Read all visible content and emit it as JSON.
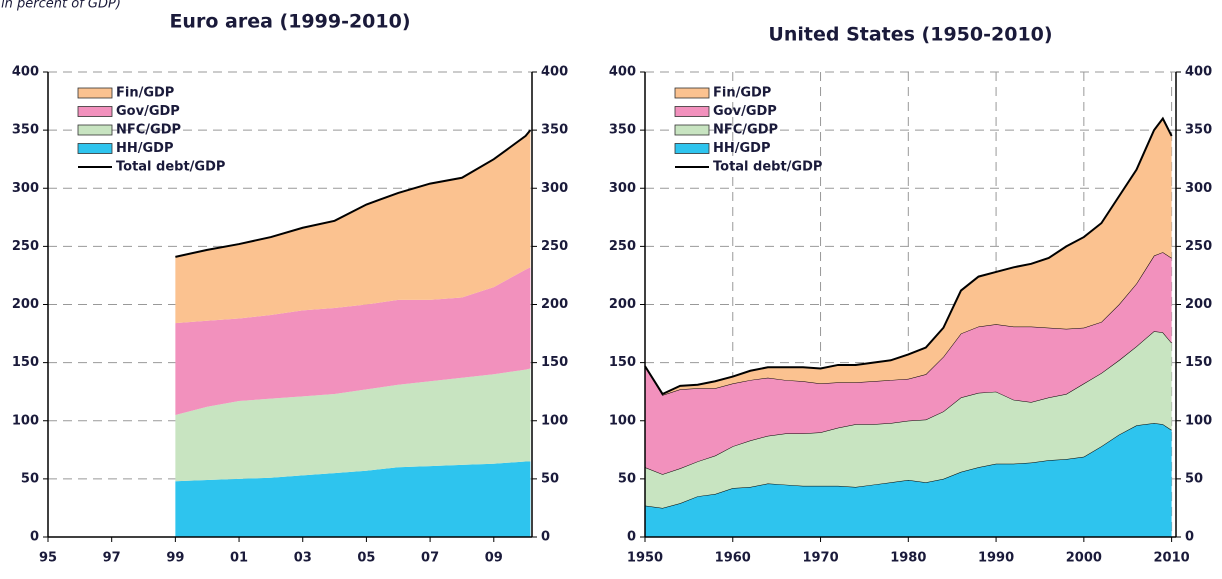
{
  "header": {
    "subtitle": "(in percent of GDP)"
  },
  "chart_data": [
    {
      "type": "stacked_area",
      "title": "Euro area (1999-2010)",
      "x": [
        1999,
        2000,
        2001,
        2002,
        2003,
        2004,
        2005,
        2006,
        2007,
        2008,
        2009,
        2010,
        2010.15
      ],
      "series": [
        {
          "name": "Fin/GDP",
          "color": "#fbc290",
          "kind": "area",
          "values": [
            57,
            61,
            64,
            67,
            71,
            75,
            86,
            92,
            100,
            103,
            110,
            115,
            118
          ]
        },
        {
          "name": "Gov/GDP",
          "color": "#f291bd",
          "kind": "area",
          "values": [
            79,
            74,
            71,
            72,
            74,
            74,
            73,
            73,
            70,
            69,
            75,
            86,
            87
          ]
        },
        {
          "name": "NFC/GDP",
          "color": "#c8e4c1",
          "kind": "area",
          "values": [
            57,
            63,
            67,
            68,
            68,
            68,
            70,
            71,
            73,
            75,
            77,
            79,
            80
          ]
        },
        {
          "name": "HH/GDP",
          "color": "#2ec4ee",
          "kind": "area",
          "values": [
            48,
            49,
            50,
            51,
            53,
            55,
            57,
            60,
            61,
            62,
            63,
            65,
            65
          ]
        },
        {
          "name": "Total debt/GDP",
          "color": "#000000",
          "kind": "line",
          "values": [
            241,
            247,
            252,
            258,
            266,
            272,
            286,
            296,
            304,
            309,
            325,
            345,
            350
          ]
        }
      ],
      "xlim": [
        1995,
        2010.2
      ],
      "xticks": [
        {
          "value": 1995,
          "label": "95"
        },
        {
          "value": 1997,
          "label": "97"
        },
        {
          "value": 1999,
          "label": "99"
        },
        {
          "value": 2001,
          "label": "01"
        },
        {
          "value": 2003,
          "label": "03"
        },
        {
          "value": 2005,
          "label": "05"
        },
        {
          "value": 2007,
          "label": "07"
        },
        {
          "value": 2009,
          "label": "09"
        }
      ],
      "ylim": [
        0,
        400
      ],
      "yticks": [
        0,
        50,
        100,
        150,
        200,
        250,
        300,
        350,
        400
      ],
      "y2lim": [
        0,
        400
      ],
      "y2ticks": [
        0,
        50,
        100,
        150,
        200,
        250,
        300,
        350,
        400
      ],
      "grid": true,
      "x_grid": false,
      "area_outline": false,
      "legend": "upper left"
    },
    {
      "type": "stacked_area",
      "title": "United States (1950-2010)",
      "x": [
        1950,
        1952,
        1954,
        1956,
        1958,
        1960,
        1962,
        1964,
        1966,
        1968,
        1970,
        1972,
        1974,
        1976,
        1978,
        1980,
        1982,
        1984,
        1986,
        1988,
        1990,
        1992,
        1994,
        1996,
        1998,
        2000,
        2002,
        2004,
        2006,
        2008,
        2009,
        2010
      ],
      "series": [
        {
          "name": "Fin/GDP",
          "color": "#fbc290",
          "kind": "area",
          "values": [
            0,
            1,
            3,
            3,
            6,
            6,
            8,
            9,
            11,
            12,
            13,
            15,
            15,
            16,
            17,
            21,
            23,
            25,
            37,
            43,
            45,
            51,
            54,
            60,
            71,
            78,
            85,
            93,
            98,
            108,
            115,
            105
          ]
        },
        {
          "name": "Gov/GDP",
          "color": "#f291bd",
          "kind": "area",
          "values": [
            87,
            68,
            68,
            63,
            58,
            54,
            52,
            50,
            46,
            45,
            42,
            39,
            36,
            37,
            37,
            36,
            39,
            47,
            55,
            57,
            58,
            63,
            65,
            60,
            56,
            48,
            44,
            48,
            54,
            65,
            69,
            73
          ]
        },
        {
          "name": "NFC/GDP",
          "color": "#c8e4c1",
          "kind": "area",
          "values": [
            33,
            29,
            30,
            30,
            33,
            36,
            40,
            41,
            44,
            45,
            46,
            50,
            54,
            52,
            51,
            51,
            54,
            58,
            64,
            64,
            62,
            55,
            52,
            54,
            56,
            63,
            63,
            64,
            68,
            79,
            79,
            75
          ]
        },
        {
          "name": "HH/GDP",
          "color": "#2ec4ee",
          "kind": "area",
          "values": [
            27,
            25,
            29,
            35,
            37,
            42,
            43,
            46,
            45,
            44,
            44,
            44,
            43,
            45,
            47,
            49,
            47,
            50,
            56,
            60,
            63,
            63,
            64,
            66,
            67,
            69,
            78,
            88,
            96,
            98,
            97,
            92
          ]
        },
        {
          "name": "Total debt/GDP",
          "color": "#000000",
          "kind": "line",
          "values": [
            147,
            123,
            130,
            131,
            134,
            138,
            143,
            146,
            146,
            146,
            145,
            148,
            148,
            150,
            152,
            157,
            163,
            180,
            212,
            224,
            228,
            232,
            235,
            240,
            250,
            258,
            270,
            293,
            316,
            350,
            360,
            345
          ]
        }
      ],
      "xlim": [
        1950,
        2010.5
      ],
      "xticks": [
        1950,
        1960,
        1970,
        1980,
        1990,
        2000,
        2010
      ],
      "ylim": [
        0,
        400
      ],
      "yticks": [
        0,
        50,
        100,
        150,
        200,
        250,
        300,
        350,
        400
      ],
      "y2lim": [
        0,
        400
      ],
      "y2ticks": [
        0,
        50,
        100,
        150,
        200,
        250,
        300,
        350,
        400
      ],
      "grid": true,
      "x_grid": true,
      "area_outline": true,
      "legend": "upper left"
    }
  ]
}
